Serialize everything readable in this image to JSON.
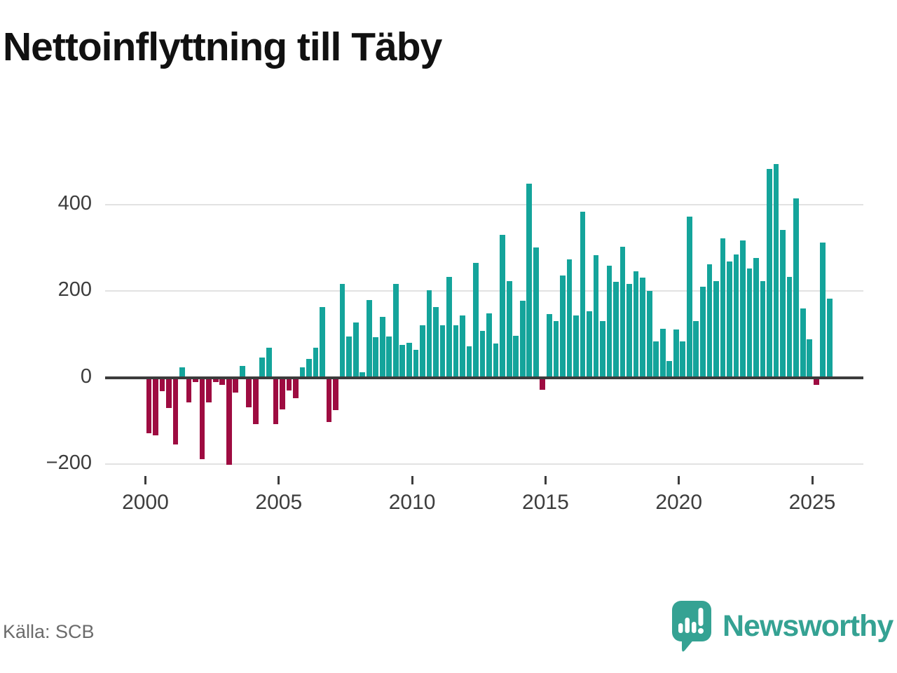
{
  "title": "Nettoinflyttning till Täby",
  "source": "Källa: SCB",
  "logo": {
    "text": "Newsworthy",
    "icon": "newsworthy-speech-bubble-chart-icon"
  },
  "colors": {
    "bar_positive": "#14a49b",
    "bar_negative": "#9e0c41",
    "grid": "#e2e2e2",
    "zero_line": "#3c3c3c",
    "axis_text": "#3d3d3d",
    "title_text": "#111111",
    "source_text": "#6b6b6b",
    "logo_teal": "#35a293"
  },
  "chart_data": {
    "type": "bar",
    "title": "Nettoinflyttning till Täby",
    "xlabel": "",
    "ylabel": "",
    "frequency": "quarterly",
    "start_year": 2000,
    "start_quarter": 1,
    "end_year": 2025,
    "end_quarter": 3,
    "x_tick_labels": [
      "2000",
      "2005",
      "2010",
      "2015",
      "2020",
      "2025"
    ],
    "y_ticks": [
      400,
      200,
      0,
      -200
    ],
    "y_tick_labels": [
      "400",
      "200",
      "0",
      "−200"
    ],
    "ylim": [
      -230,
      520
    ],
    "grid": true,
    "legend": false,
    "series": [
      {
        "name": "Nettoinflyttning till Täby (kvartal)",
        "values": [
          -125,
          -130,
          -29,
          -68,
          -152,
          23,
          -55,
          -8,
          -186,
          -55,
          -8,
          -13,
          -199,
          -31,
          26,
          -66,
          -104,
          46,
          69,
          -105,
          -71,
          -27,
          -44,
          23,
          43,
          69,
          162,
          -99,
          -72,
          217,
          94,
          127,
          12,
          179,
          93,
          140,
          94,
          217,
          76,
          80,
          64,
          120,
          201,
          162,
          120,
          233,
          121,
          143,
          72,
          264,
          107,
          148,
          79,
          330,
          222,
          96,
          178,
          448,
          301,
          -25,
          147,
          131,
          235,
          273,
          143,
          383,
          153,
          283,
          130,
          259,
          221,
          302,
          216,
          245,
          230,
          200,
          84,
          112,
          38,
          111,
          84,
          372,
          131,
          210,
          262,
          223,
          322,
          268,
          285,
          316,
          252,
          276,
          223,
          482,
          493,
          341,
          233,
          414,
          159,
          89,
          -13,
          311,
          182
        ]
      }
    ],
    "positive_color": "#14a49b",
    "negative_color": "#9e0c41"
  }
}
